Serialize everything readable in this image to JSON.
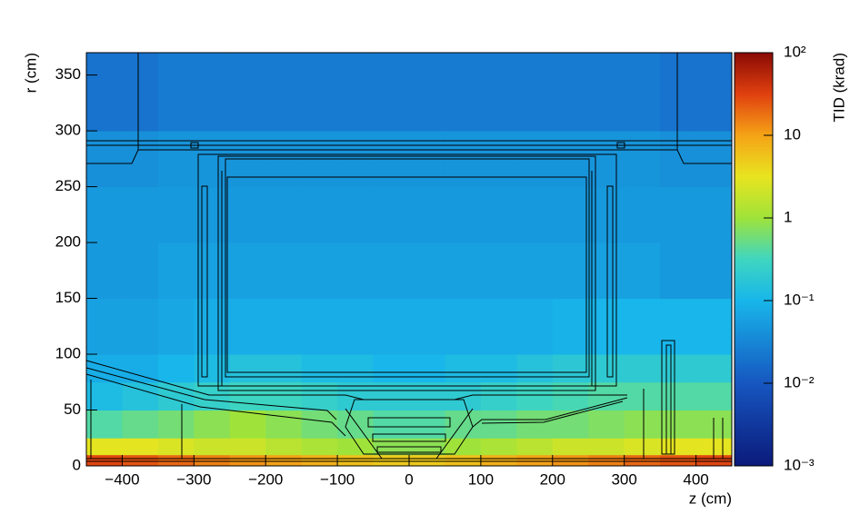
{
  "chart_data": {
    "type": "heatmap",
    "x_label": "z (cm)",
    "y_label": "r (cm)",
    "colorbar_label": "TID (krad)",
    "xlim": [
      -450,
      450
    ],
    "ylim": [
      0,
      370
    ],
    "xticks": [
      -400,
      -300,
      -200,
      -100,
      0,
      100,
      200,
      300,
      400
    ],
    "yticks": [
      0,
      50,
      100,
      150,
      200,
      250,
      300,
      350
    ],
    "zlim": [
      0.001,
      100
    ],
    "zlog": true,
    "zticks": [
      {
        "value": 100,
        "label": "10²"
      },
      10,
      1,
      {
        "value": 0.1,
        "label": "10⁻¹"
      },
      {
        "value": 0.01,
        "label": "10⁻²"
      },
      {
        "value": 0.001,
        "label": "10⁻³"
      }
    ],
    "xbins": [
      -450,
      -400,
      -350,
      -300,
      -250,
      -200,
      -150,
      -100,
      -50,
      0,
      50,
      100,
      150,
      200,
      250,
      300,
      350,
      400,
      450
    ],
    "ybins": [
      0,
      10,
      25,
      50,
      75,
      100,
      150,
      200,
      250,
      300,
      370
    ],
    "values": [
      [
        30,
        25,
        20,
        15,
        12,
        10,
        8,
        6,
        5,
        5,
        6,
        8,
        10,
        12,
        15,
        20,
        25,
        30
      ],
      [
        3,
        3,
        2.5,
        2,
        2,
        1.5,
        1.2,
        1,
        0.8,
        0.8,
        1,
        1.2,
        1.5,
        2,
        2,
        2.5,
        3,
        3
      ],
      [
        0.4,
        0.5,
        0.6,
        0.8,
        1,
        0.8,
        0.6,
        0.5,
        0.4,
        0.4,
        0.5,
        0.5,
        0.6,
        0.6,
        0.7,
        0.8,
        0.8,
        0.8
      ],
      [
        0.12,
        0.15,
        0.2,
        0.25,
        0.3,
        0.3,
        0.25,
        0.2,
        0.2,
        0.2,
        0.2,
        0.25,
        0.3,
        0.35,
        0.4,
        0.4,
        0.4,
        0.4
      ],
      [
        0.08,
        0.08,
        0.1,
        0.12,
        0.15,
        0.15,
        0.12,
        0.12,
        0.1,
        0.1,
        0.12,
        0.12,
        0.15,
        0.18,
        0.2,
        0.2,
        0.2,
        0.2
      ],
      [
        0.06,
        0.06,
        0.07,
        0.08,
        0.08,
        0.08,
        0.08,
        0.08,
        0.08,
        0.08,
        0.08,
        0.08,
        0.08,
        0.09,
        0.1,
        0.1,
        0.1,
        0.1
      ],
      [
        0.05,
        0.05,
        0.06,
        0.06,
        0.06,
        0.06,
        0.06,
        0.06,
        0.06,
        0.06,
        0.06,
        0.06,
        0.06,
        0.06,
        0.06,
        0.06,
        0.05,
        0.05
      ],
      [
        0.05,
        0.05,
        0.05,
        0.05,
        0.05,
        0.05,
        0.05,
        0.05,
        0.05,
        0.05,
        0.05,
        0.05,
        0.05,
        0.05,
        0.05,
        0.05,
        0.05,
        0.05
      ],
      [
        0.04,
        0.04,
        0.045,
        0.045,
        0.045,
        0.045,
        0.045,
        0.045,
        0.045,
        0.045,
        0.045,
        0.045,
        0.045,
        0.045,
        0.045,
        0.045,
        0.04,
        0.04
      ],
      [
        0.02,
        0.02,
        0.025,
        0.025,
        0.025,
        0.025,
        0.025,
        0.025,
        0.025,
        0.025,
        0.025,
        0.025,
        0.025,
        0.025,
        0.025,
        0.025,
        0.02,
        0.02
      ]
    ]
  }
}
